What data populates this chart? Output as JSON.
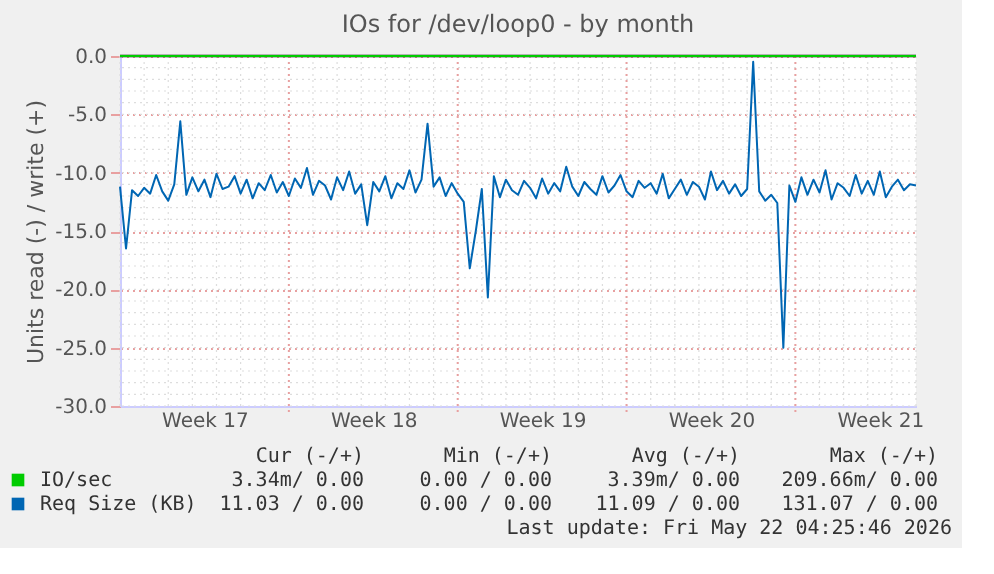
{
  "chart_data": {
    "type": "line",
    "title": "IOs for /dev/loop0 - by month",
    "ylabel": "Units read (-) / write (+)",
    "categories": [
      null,
      null,
      null,
      null,
      null,
      null,
      null,
      null,
      null,
      null,
      null,
      null,
      null,
      null,
      "Week 17",
      null,
      null,
      null,
      null,
      null,
      null,
      null,
      null,
      null,
      null,
      null,
      null,
      null,
      null,
      null,
      null,
      null,
      null,
      null,
      null,
      null,
      null,
      null,
      null,
      null,
      null,
      null,
      "Week 18",
      null,
      null,
      null,
      null,
      null,
      null,
      null,
      null,
      null,
      null,
      null,
      null,
      null,
      null,
      null,
      null,
      null,
      null,
      null,
      null,
      null,
      null,
      null,
      null,
      null,
      null,
      null,
      "Week 19",
      null,
      null,
      null,
      null,
      null,
      null,
      null,
      null,
      null,
      null,
      null,
      null,
      null,
      null,
      null,
      null,
      null,
      null,
      null,
      null,
      null,
      null,
      null,
      null,
      null,
      null,
      null,
      "Week 20",
      null,
      null,
      null,
      null,
      null,
      null,
      null,
      null,
      null,
      null,
      null,
      null,
      null,
      null,
      null,
      null,
      null,
      null,
      null,
      null,
      null,
      null,
      null,
      null,
      null,
      null,
      null,
      "Week 21",
      null,
      null,
      null,
      null,
      null,
      null
    ],
    "ylim": [
      -30,
      0
    ],
    "yticks": [
      {
        "value": -30,
        "label": "-30.0"
      },
      {
        "value": -25,
        "label": "-25.0"
      },
      {
        "value": -20,
        "label": "-20.0"
      },
      {
        "value": -15,
        "label": "-15.0"
      },
      {
        "value": -10,
        "label": "-10.0"
      },
      {
        "value": -5,
        "label": "-5.0"
      },
      {
        "value": 0,
        "label": "0.0"
      }
    ],
    "grid": true,
    "legend": "bottom",
    "marker": "none",
    "line_style": "solid",
    "ref_lines": [
      {
        "axis": "y",
        "value": 0,
        "label": null,
        "color": "#000000"
      }
    ],
    "series": [
      {
        "name": "IO/sec",
        "color": "#00cc00",
        "values": [
          0,
          0,
          0,
          0,
          0,
          0,
          0,
          0,
          0,
          0,
          0,
          0,
          0,
          0,
          0,
          0,
          0,
          0,
          0,
          0,
          0,
          0,
          0,
          0,
          0,
          0,
          0,
          0,
          0,
          0,
          0,
          0,
          0,
          0,
          0,
          0,
          0,
          0,
          0,
          0,
          0,
          0,
          0,
          0,
          0,
          0,
          0,
          0,
          0,
          0,
          0,
          0,
          0,
          0,
          0,
          0,
          0,
          0,
          0,
          0,
          0,
          0,
          0,
          0,
          0,
          0,
          0,
          0,
          0,
          0,
          0,
          0,
          0,
          0,
          0,
          0,
          0,
          0,
          0,
          0,
          0,
          0,
          0,
          0,
          0,
          0,
          0,
          0,
          0,
          0,
          0,
          0,
          0,
          0,
          0,
          0,
          0,
          0,
          0,
          0,
          0,
          0,
          0,
          0,
          0,
          0,
          0,
          0,
          0,
          0,
          0,
          0,
          0,
          0,
          0,
          0,
          0,
          0,
          0,
          0,
          0,
          0,
          0,
          0,
          0,
          0,
          0,
          0,
          0,
          0,
          0,
          0,
          0
        ]
      },
      {
        "name": "Req Size (KB)",
        "color": "#0066b3",
        "values": [
          -11.2,
          -16.5,
          -11.5,
          -12.0,
          -11.3,
          -11.8,
          -10.2,
          -11.6,
          -12.4,
          -11.0,
          -5.6,
          -11.9,
          -10.4,
          -11.6,
          -10.6,
          -12.1,
          -10.1,
          -11.4,
          -11.2,
          -10.3,
          -11.8,
          -10.6,
          -12.2,
          -10.9,
          -11.5,
          -10.2,
          -11.7,
          -10.8,
          -12.0,
          -10.5,
          -11.3,
          -9.6,
          -11.9,
          -10.7,
          -11.1,
          -12.3,
          -10.4,
          -11.5,
          -9.9,
          -11.8,
          -11.0,
          -14.5,
          -10.8,
          -11.6,
          -10.3,
          -12.2,
          -10.9,
          -11.4,
          -9.8,
          -11.7,
          -10.6,
          -5.8,
          -11.2,
          -10.4,
          -12.0,
          -10.9,
          -11.8,
          -12.5,
          -18.2,
          -15.0,
          -11.4,
          -20.7,
          -10.3,
          -12.1,
          -10.6,
          -11.5,
          -11.9,
          -10.7,
          -11.3,
          -12.2,
          -10.5,
          -11.8,
          -10.9,
          -11.6,
          -9.5,
          -11.2,
          -12.0,
          -10.8,
          -11.4,
          -11.9,
          -10.3,
          -11.7,
          -11.1,
          -10.2,
          -11.6,
          -12.1,
          -10.7,
          -11.3,
          -10.9,
          -11.8,
          -10.1,
          -12.2,
          -11.4,
          -10.6,
          -11.9,
          -10.8,
          -11.2,
          -12.3,
          -9.9,
          -11.5,
          -10.7,
          -11.8,
          -11.0,
          -12.0,
          -11.4,
          -0.5,
          -11.6,
          -12.4,
          -11.9,
          -12.6,
          -25.0,
          -11.1,
          -12.5,
          -10.4,
          -11.9,
          -10.6,
          -11.7,
          -9.8,
          -12.3,
          -10.9,
          -11.3,
          -12.0,
          -10.2,
          -11.8,
          -10.7,
          -11.9,
          -9.9,
          -12.1,
          -11.2,
          -10.6,
          -11.5,
          -11.0,
          -11.1
        ]
      }
    ],
    "annotations": [
      "Cur (-/+)",
      "Min (-/+)",
      "Avg (-/+)",
      "Max (-/+)",
      "3.34m/ 0.00",
      "0.00 / 0.00",
      "3.39m/ 0.00",
      "209.66m/ 0.00",
      "11.03 / 0.00",
      "0.00 / 0.00",
      "11.09 / 0.00",
      "131.07 / 0.00",
      "Last update: Fri May 22 04:25:46 2026"
    ]
  }
}
